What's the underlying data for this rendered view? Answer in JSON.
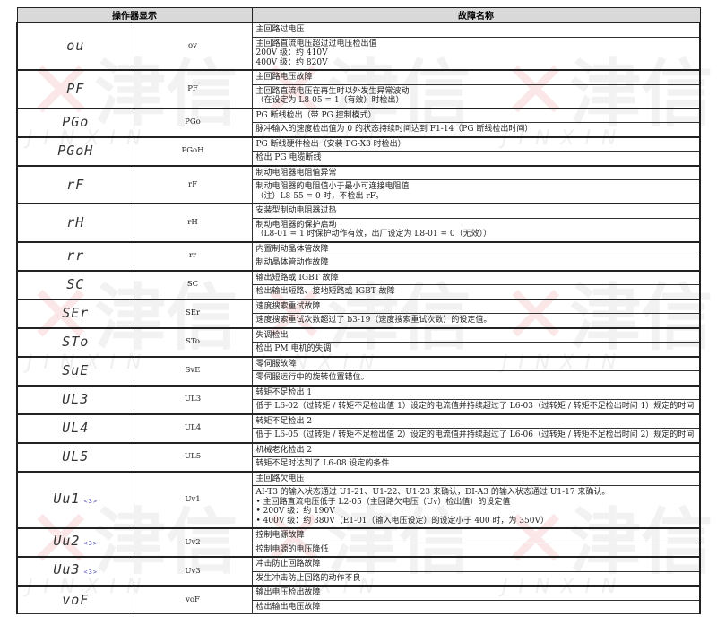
{
  "watermark": {
    "mark": "✕",
    "brand_cn": "津信",
    "brand_en": "JINXIN"
  },
  "table": {
    "headers": {
      "display": "操作器显示",
      "fault_name": "故障名称"
    },
    "rows": [
      {
        "display": "ou",
        "code": "ov",
        "desc": [
          [
            "主回路过电压"
          ],
          [
            "主回路直流电压超过过电压检出值",
            "200V 级：约 410V",
            "400V 级：约 820V"
          ]
        ]
      },
      {
        "display": "PF",
        "code": "PF",
        "desc": [
          [
            "主回路电压故障"
          ],
          [
            "主回路直流电压在再生时以外发生异常波动",
            "（在设定为 L8-05 = 1（有效）时检出）"
          ]
        ]
      },
      {
        "display": "PGo",
        "code": "PGo",
        "desc": [
          [
            "PG 断线检出（带 PG 控制模式）"
          ],
          [
            "脉冲输入的速度检出值为 0 的状态持续时间达到 F1-14（PG 断线检出时间）"
          ]
        ]
      },
      {
        "display": "PGoH",
        "code": "PGoH",
        "desc": [
          [
            "PG 断线硬件检出（安装 PG-X3 时检出）"
          ],
          [
            "检出 PG 电缆断线"
          ]
        ]
      },
      {
        "display": "rF",
        "code": "rF",
        "desc": [
          [
            "制动电阻器电阻值异常"
          ],
          [
            "制动电阻器的电阻值小于最小可连接电阻值",
            "（注）L8-55 = 0 时，不检出 rF。"
          ]
        ]
      },
      {
        "display": "rH",
        "code": "rH",
        "desc": [
          [
            "安装型制动电阻器过热"
          ],
          [
            "制动电阻器的保护启动",
            "（L8-01 = 1 时保护动作有效，出厂设定为 L8-01 = 0（无效））"
          ]
        ]
      },
      {
        "display": "rr",
        "code": "rr",
        "desc": [
          [
            "内置制动晶体管故障"
          ],
          [
            "制动晶体管动作故障"
          ]
        ]
      },
      {
        "display": "SC",
        "code": "SC",
        "desc": [
          [
            "输出短路或 IGBT 故障"
          ],
          [
            "检出输出短路、接地短路或 IGBT 故障"
          ]
        ]
      },
      {
        "display": "SEr",
        "code": "SEr",
        "desc": [
          [
            "速度搜索重试故障"
          ],
          [
            "速度搜索重试次数超过了 b3-19（速度搜索重试次数）的设定值。"
          ]
        ]
      },
      {
        "display": "STo",
        "code": "STo",
        "desc": [
          [
            "失调检出"
          ],
          [
            "检出 PM 电机的失调"
          ]
        ]
      },
      {
        "display": "SuE",
        "code": "SvE",
        "desc": [
          [
            "零伺服故障"
          ],
          [
            "零伺服运行中的旋转位置错位。"
          ]
        ]
      },
      {
        "display": "UL3",
        "code": "UL3",
        "desc": [
          [
            "转矩不足检出 1"
          ],
          [
            "低于 L6-02（过转矩 / 转矩不足检出值 1）设定的电流值并持续超过了 L6-03（过转矩 / 转矩不足检出时间 1）规定的时间"
          ]
        ]
      },
      {
        "display": "UL4",
        "code": "UL4",
        "desc": [
          [
            "转矩不足检出 2"
          ],
          [
            "低于 L6-05（过转矩 / 转矩不足检出值 2）设定的电流值并持续超过了 L6-06（过转矩 / 转矩不足检出时间 2）规定的时间"
          ]
        ]
      },
      {
        "display": "UL5",
        "code": "UL5",
        "desc": [
          [
            "机械老化检出 2"
          ],
          [
            "转矩不足时达到了 L6-08 设定的条件"
          ]
        ]
      },
      {
        "display": "Uu1",
        "note": "<3>",
        "code": "Uv1",
        "desc": [
          [
            "主回路欠电压"
          ],
          [
            "AI-T3 的输入状态通过 U1-21、U1-22、U1-23 来确认，DI-A3 的输入状态通过 U1-17 来确认。",
            "• 主回路直流电压低于 L2-05（主回路欠电压（Uv）检出值）的设定值",
            "• 200V 级：约 190V",
            "• 400V 级：约 380V（E1-01（输入电压设定）的设定小于 400 时，为 350V）"
          ]
        ]
      },
      {
        "display": "Uu2",
        "note": "<3>",
        "code": "Uv2",
        "desc": [
          [
            "控制电源故障"
          ],
          [
            "控制电源的电压降低"
          ]
        ]
      },
      {
        "display": "Uu3",
        "note": "<3>",
        "code": "Uv3",
        "desc": [
          [
            "冲击防止回路故障"
          ],
          [
            "发生冲击防止回路的动作不良"
          ]
        ]
      },
      {
        "display": "voF",
        "code": "voF",
        "desc": [
          [
            "输出电压检出故障"
          ],
          [
            "检出输出电压故障"
          ]
        ]
      }
    ]
  }
}
